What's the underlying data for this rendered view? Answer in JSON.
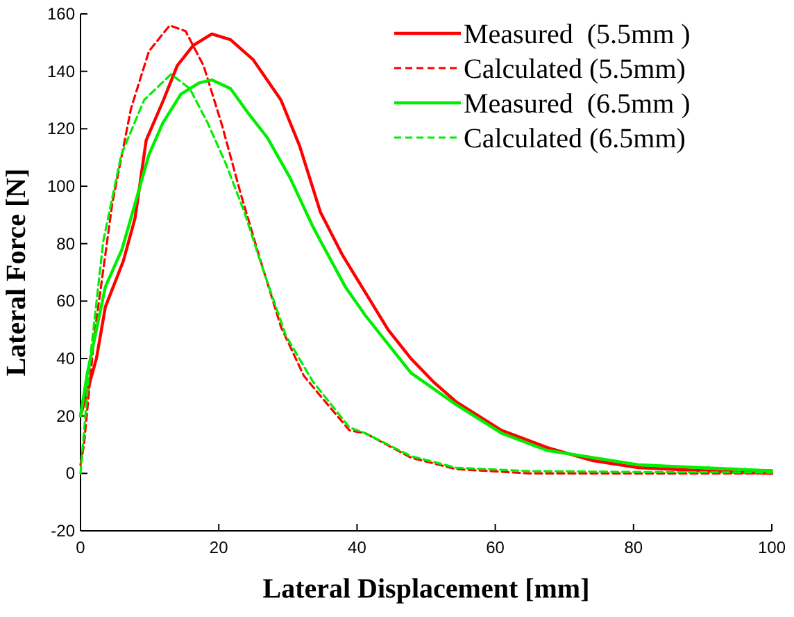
{
  "chart_data": {
    "type": "line",
    "xlabel": "Lateral Displacement [mm]",
    "ylabel": "Lateral Force [N]",
    "xlim": [
      0,
      100
    ],
    "ylim": [
      -20,
      160
    ],
    "xticks": [
      0,
      20,
      40,
      60,
      80,
      100
    ],
    "yticks": [
      -20,
      0,
      20,
      40,
      60,
      80,
      100,
      120,
      140,
      160
    ],
    "grid": false,
    "legend": "top right",
    "series": [
      {
        "name": "Measured  (5.5mm )",
        "color": "#ff0000",
        "line_style": "solid",
        "x": [
          0,
          2.3,
          3.6,
          6.2,
          7.9,
          9.5,
          12,
          14,
          16.3,
          19,
          21.7,
          25,
          29,
          31.7,
          34.7,
          37.9,
          41.2,
          44.5,
          47.8,
          51,
          54.3,
          60.9,
          67.5,
          74,
          80.7,
          93.9,
          100
        ],
        "values": [
          20,
          40,
          58,
          74,
          89,
          116,
          130,
          142,
          149,
          153,
          151,
          144,
          130,
          114,
          91,
          76,
          63,
          50,
          40,
          32,
          25,
          15,
          9,
          4.5,
          2,
          0.5,
          0
        ]
      },
      {
        "name": "Calculated (5.5mm)",
        "color": "#ff0000",
        "line_style": "dashed",
        "x": [
          0,
          0.5,
          2,
          4.6,
          7.3,
          9.9,
          12.9,
          15.2,
          17.8,
          20.5,
          23.1,
          25.8,
          29,
          32.3,
          34.7,
          38.9,
          41.2,
          47.8,
          54.3,
          65,
          80,
          100
        ],
        "values": [
          3,
          10,
          48,
          94,
          127,
          147,
          156,
          154,
          142,
          121,
          98,
          76,
          51,
          34,
          27,
          15,
          14,
          5.5,
          1.5,
          0,
          0,
          0
        ]
      },
      {
        "name": "Measured  (6.5mm )",
        "color": "#00ee00",
        "line_style": "solid",
        "x": [
          0,
          1,
          2.3,
          3.6,
          6,
          7.9,
          9.9,
          11.9,
          14.5,
          17.2,
          19,
          21.7,
          24.4,
          27,
          30.3,
          33.6,
          34.7,
          38.3,
          41.2,
          47.8,
          54.3,
          60.9,
          67.5,
          80.7,
          99,
          100
        ],
        "values": [
          20,
          35,
          50,
          65,
          78,
          94,
          111,
          122,
          132,
          136,
          137,
          134,
          125,
          117,
          103,
          86,
          81,
          65,
          55,
          35,
          24,
          14,
          8,
          3,
          1,
          1
        ]
      },
      {
        "name": "Calculated (6.5mm)",
        "color": "#00ee00",
        "line_style": "dashed",
        "x": [
          0,
          1.4,
          3.3,
          5.9,
          9.2,
          13.1,
          15.8,
          18.4,
          21,
          23.7,
          26.4,
          29.7,
          33.6,
          38.9,
          41.2,
          47.8,
          54.3,
          65,
          80,
          100
        ],
        "values": [
          0,
          40,
          81,
          111,
          130,
          139,
          134,
          122,
          108,
          91,
          71,
          48,
          32,
          16,
          14,
          6,
          2,
          0.8,
          0.5,
          0.3
        ]
      }
    ]
  }
}
